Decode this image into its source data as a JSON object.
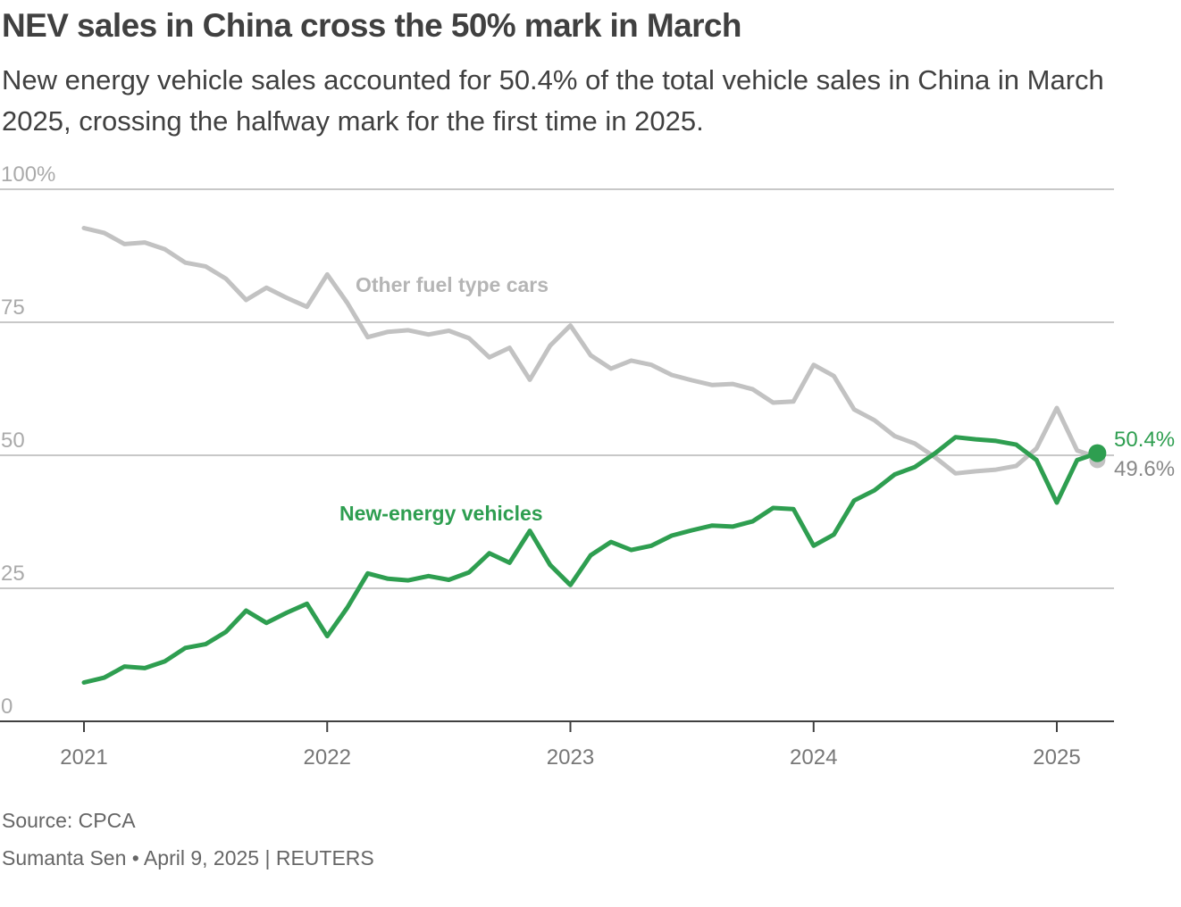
{
  "title": "NEV sales in China cross the 50% mark in March",
  "subtitle": "New energy vehicle sales accounted for 50.4% of the total vehicle sales in China in March 2025, crossing the halfway mark for the first time in 2025.",
  "source": "Source: CPCA",
  "credit": "Sumanta Sen • April 9, 2025 | REUTERS",
  "colors": {
    "nev": "#2e9e50",
    "other": "#c2c2c2",
    "grid": "#c8c8c8",
    "axis": "#404040",
    "label": "#aaaaaa"
  },
  "chart_data": {
    "type": "line",
    "title": "NEV sales in China cross the 50% mark in March",
    "xlabel": "",
    "ylabel": "",
    "ylim": [
      0,
      100
    ],
    "xlim": [
      2021.0,
      2025.25
    ],
    "y_ticks": [
      0,
      25,
      50,
      75,
      100
    ],
    "y_tick_labels": [
      "0",
      "25",
      "50",
      "75",
      "100%"
    ],
    "x_ticks": [
      2021,
      2022,
      2023,
      2024,
      2025
    ],
    "x_tick_labels": [
      "2021",
      "2022",
      "2023",
      "2024",
      "2025"
    ],
    "grid": true,
    "x_start": "2021-01",
    "interval": "monthly",
    "series": [
      {
        "name": "Other fuel type cars",
        "label": "Other fuel type cars",
        "values": [
          92.7,
          91.8,
          89.7,
          90.0,
          88.7,
          86.2,
          85.5,
          83.2,
          79.2,
          81.5,
          79.6,
          77.9,
          84.0,
          78.6,
          72.2,
          73.2,
          73.5,
          72.7,
          73.4,
          72.0,
          68.4,
          70.2,
          64.2,
          70.6,
          74.4,
          68.8,
          66.3,
          67.8,
          67.0,
          65.1,
          64.1,
          63.2,
          63.4,
          62.4,
          59.9,
          60.1,
          67.0,
          64.9,
          58.6,
          56.6,
          53.6,
          52.2,
          49.6,
          46.6,
          47.0,
          47.3,
          48.0,
          51.3,
          58.9,
          50.9,
          49.6
        ],
        "end_label": "49.6%"
      },
      {
        "name": "New-energy vehicles",
        "label": "New-energy vehicles",
        "values": [
          7.3,
          8.2,
          10.3,
          10.0,
          11.3,
          13.8,
          14.5,
          16.8,
          20.8,
          18.5,
          20.4,
          22.1,
          16.0,
          21.4,
          27.8,
          26.8,
          26.5,
          27.3,
          26.6,
          28.0,
          31.6,
          29.8,
          35.8,
          29.4,
          25.6,
          31.2,
          33.7,
          32.2,
          33.0,
          34.9,
          35.9,
          36.8,
          36.6,
          37.6,
          40.1,
          39.9,
          33.0,
          35.1,
          41.5,
          43.4,
          46.4,
          47.8,
          50.4,
          53.4,
          53.0,
          52.7,
          52.0,
          49.1,
          41.1,
          49.1,
          50.4
        ],
        "end_label": "50.4%"
      }
    ]
  }
}
